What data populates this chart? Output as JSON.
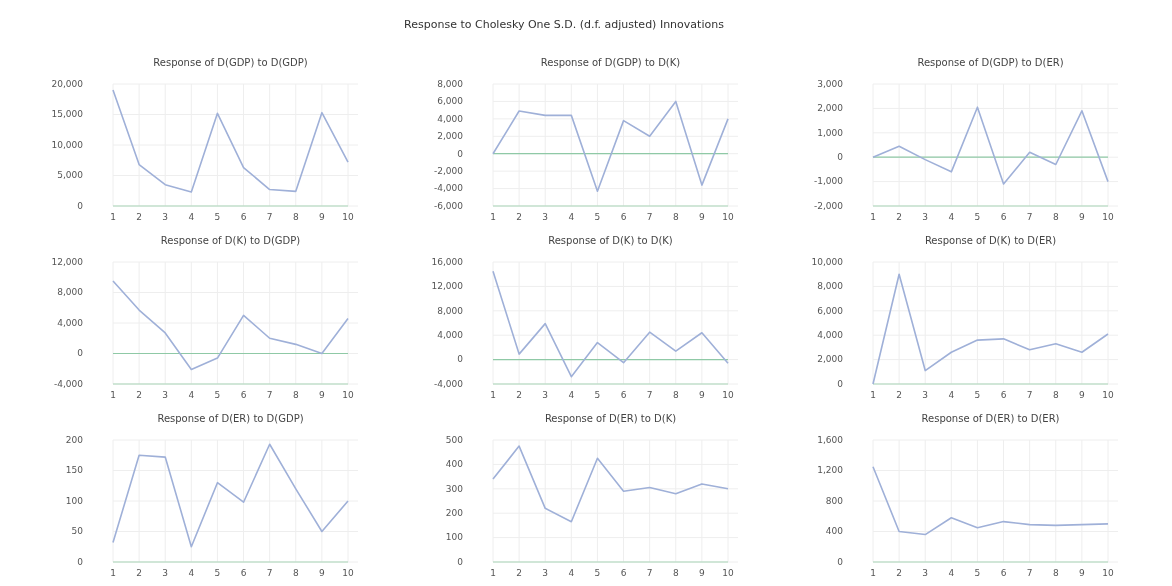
{
  "chart_data": [
    {
      "type": "line",
      "title": "Response of D(GDP) to D(GDP)",
      "annotations": [
        "Response to Cholesky One S.D. (d.f. adjusted) Innovations"
      ],
      "x": [
        1,
        2,
        3,
        4,
        5,
        6,
        7,
        8,
        9,
        10
      ],
      "xlim": [
        1,
        10
      ],
      "xticks": [
        1,
        2,
        3,
        4,
        5,
        6,
        7,
        8,
        9,
        10
      ],
      "ylim": [
        0,
        20000
      ],
      "yticks": [
        {
          "value": 0,
          "label": "0"
        },
        {
          "value": 5000,
          "label": "5,000"
        },
        {
          "value": 10000,
          "label": "10,000"
        },
        {
          "value": 15000,
          "label": "15,000"
        },
        {
          "value": 20000,
          "label": "20,000"
        }
      ],
      "grid": true,
      "series": [
        {
          "color": "#9fb0d8",
          "values": [
            19000,
            6800,
            3500,
            2300,
            15200,
            6300,
            2700,
            2400,
            15300,
            7200
          ]
        }
      ]
    },
    {
      "type": "line",
      "title": "Response of D(GDP) to D(K)",
      "x": [
        1,
        2,
        3,
        4,
        5,
        6,
        7,
        8,
        9,
        10
      ],
      "xlim": [
        1,
        10
      ],
      "xticks": [
        1,
        2,
        3,
        4,
        5,
        6,
        7,
        8,
        9,
        10
      ],
      "ylim": [
        -6000,
        8000
      ],
      "yticks": [
        {
          "value": -6000,
          "label": "-6,000"
        },
        {
          "value": -4000,
          "label": "-4,000"
        },
        {
          "value": -2000,
          "label": "-2,000"
        },
        {
          "value": 0,
          "label": "0"
        },
        {
          "value": 2000,
          "label": "2,000"
        },
        {
          "value": 4000,
          "label": "4,000"
        },
        {
          "value": 6000,
          "label": "6,000"
        },
        {
          "value": 8000,
          "label": "8,000"
        }
      ],
      "grid": true,
      "ref_lines": [
        {
          "axis": "y",
          "value": 0,
          "color": "#8fc9a6"
        }
      ],
      "series": [
        {
          "color": "#9fb0d8",
          "values": [
            0,
            4900,
            4400,
            4400,
            -4300,
            3800,
            2000,
            6000,
            -3600,
            4000
          ]
        }
      ]
    },
    {
      "type": "line",
      "title": "Response of D(GDP) to D(ER)",
      "x": [
        1,
        2,
        3,
        4,
        5,
        6,
        7,
        8,
        9,
        10
      ],
      "xlim": [
        1,
        10
      ],
      "xticks": [
        1,
        2,
        3,
        4,
        5,
        6,
        7,
        8,
        9,
        10
      ],
      "ylim": [
        -2000,
        3000
      ],
      "yticks": [
        {
          "value": -2000,
          "label": "-2,000"
        },
        {
          "value": -1000,
          "label": "-1,000"
        },
        {
          "value": 0,
          "label": "0"
        },
        {
          "value": 1000,
          "label": "1,000"
        },
        {
          "value": 2000,
          "label": "2,000"
        },
        {
          "value": 3000,
          "label": "3,000"
        }
      ],
      "grid": true,
      "ref_lines": [
        {
          "axis": "y",
          "value": 0,
          "color": "#8fc9a6"
        }
      ],
      "series": [
        {
          "color": "#9fb0d8",
          "values": [
            0,
            450,
            -100,
            -600,
            2050,
            -1100,
            200,
            -300,
            1900,
            -1000
          ]
        }
      ]
    },
    {
      "type": "line",
      "title": "Response of D(K) to D(GDP)",
      "x": [
        1,
        2,
        3,
        4,
        5,
        6,
        7,
        8,
        9,
        10
      ],
      "xlim": [
        1,
        10
      ],
      "xticks": [
        1,
        2,
        3,
        4,
        5,
        6,
        7,
        8,
        9,
        10
      ],
      "ylim": [
        -4000,
        12000
      ],
      "yticks": [
        {
          "value": -4000,
          "label": "-4,000"
        },
        {
          "value": 0,
          "label": "0"
        },
        {
          "value": 4000,
          "label": "4,000"
        },
        {
          "value": 8000,
          "label": "8,000"
        },
        {
          "value": 12000,
          "label": "12,000"
        }
      ],
      "grid": true,
      "ref_lines": [
        {
          "axis": "y",
          "value": 0,
          "color": "#8fc9a6"
        }
      ],
      "series": [
        {
          "color": "#9fb0d8",
          "values": [
            9500,
            5700,
            2700,
            -2100,
            -600,
            5000,
            2000,
            1200,
            0,
            4600
          ]
        }
      ]
    },
    {
      "type": "line",
      "title": "Response of D(K) to D(K)",
      "x": [
        1,
        2,
        3,
        4,
        5,
        6,
        7,
        8,
        9,
        10
      ],
      "xlim": [
        1,
        10
      ],
      "xticks": [
        1,
        2,
        3,
        4,
        5,
        6,
        7,
        8,
        9,
        10
      ],
      "ylim": [
        -4000,
        16000
      ],
      "yticks": [
        {
          "value": -4000,
          "label": "-4,000"
        },
        {
          "value": 0,
          "label": "0"
        },
        {
          "value": 4000,
          "label": "4,000"
        },
        {
          "value": 8000,
          "label": "8,000"
        },
        {
          "value": 12000,
          "label": "12,000"
        },
        {
          "value": 16000,
          "label": "16,000"
        }
      ],
      "grid": true,
      "ref_lines": [
        {
          "axis": "y",
          "value": 0,
          "color": "#8fc9a6"
        }
      ],
      "series": [
        {
          "color": "#9fb0d8",
          "values": [
            14500,
            900,
            5900,
            -2800,
            2800,
            -500,
            4500,
            1400,
            4400,
            -600
          ]
        }
      ]
    },
    {
      "type": "line",
      "title": "Response of D(K) to D(ER)",
      "x": [
        1,
        2,
        3,
        4,
        5,
        6,
        7,
        8,
        9,
        10
      ],
      "xlim": [
        1,
        10
      ],
      "xticks": [
        1,
        2,
        3,
        4,
        5,
        6,
        7,
        8,
        9,
        10
      ],
      "ylim": [
        0,
        10000
      ],
      "yticks": [
        {
          "value": 0,
          "label": "0"
        },
        {
          "value": 2000,
          "label": "2,000"
        },
        {
          "value": 4000,
          "label": "4,000"
        },
        {
          "value": 6000,
          "label": "6,000"
        },
        {
          "value": 8000,
          "label": "8,000"
        },
        {
          "value": 10000,
          "label": "10,000"
        }
      ],
      "grid": true,
      "series": [
        {
          "color": "#9fb0d8",
          "values": [
            0,
            9000,
            1100,
            2600,
            3600,
            3700,
            2800,
            3300,
            2600,
            4100
          ]
        }
      ]
    },
    {
      "type": "line",
      "title": "Response of D(ER) to D(GDP)",
      "x": [
        1,
        2,
        3,
        4,
        5,
        6,
        7,
        8,
        9,
        10
      ],
      "xlim": [
        1,
        10
      ],
      "xticks": [
        1,
        2,
        3,
        4,
        5,
        6,
        7,
        8,
        9,
        10
      ],
      "ylim": [
        0,
        200
      ],
      "yticks": [
        0,
        50,
        100,
        150,
        200
      ],
      "grid": true,
      "series": [
        {
          "color": "#9fb0d8",
          "values": [
            32,
            175,
            172,
            25,
            130,
            98,
            193,
            120,
            50,
            100
          ]
        }
      ]
    },
    {
      "type": "line",
      "title": "Response of D(ER) to D(K)",
      "x": [
        1,
        2,
        3,
        4,
        5,
        6,
        7,
        8,
        9,
        10
      ],
      "xlim": [
        1,
        10
      ],
      "xticks": [
        1,
        2,
        3,
        4,
        5,
        6,
        7,
        8,
        9,
        10
      ],
      "ylim": [
        0,
        500
      ],
      "yticks": [
        0,
        100,
        200,
        300,
        400,
        500
      ],
      "grid": true,
      "series": [
        {
          "color": "#9fb0d8",
          "values": [
            340,
            475,
            220,
            165,
            425,
            290,
            305,
            280,
            320,
            300
          ]
        }
      ]
    },
    {
      "type": "line",
      "title": "Response of D(ER) to D(ER)",
      "x": [
        1,
        2,
        3,
        4,
        5,
        6,
        7,
        8,
        9,
        10
      ],
      "xlim": [
        1,
        10
      ],
      "xticks": [
        1,
        2,
        3,
        4,
        5,
        6,
        7,
        8,
        9,
        10
      ],
      "ylim": [
        0,
        1600
      ],
      "yticks": [
        {
          "value": 0,
          "label": "0"
        },
        {
          "value": 400,
          "label": "400"
        },
        {
          "value": 800,
          "label": "800"
        },
        {
          "value": 1200,
          "label": "1,200"
        },
        {
          "value": 1600,
          "label": "1,600"
        }
      ],
      "grid": true,
      "series": [
        {
          "color": "#9fb0d8",
          "values": [
            1250,
            400,
            360,
            580,
            450,
            530,
            490,
            480,
            490,
            500
          ]
        }
      ]
    }
  ]
}
